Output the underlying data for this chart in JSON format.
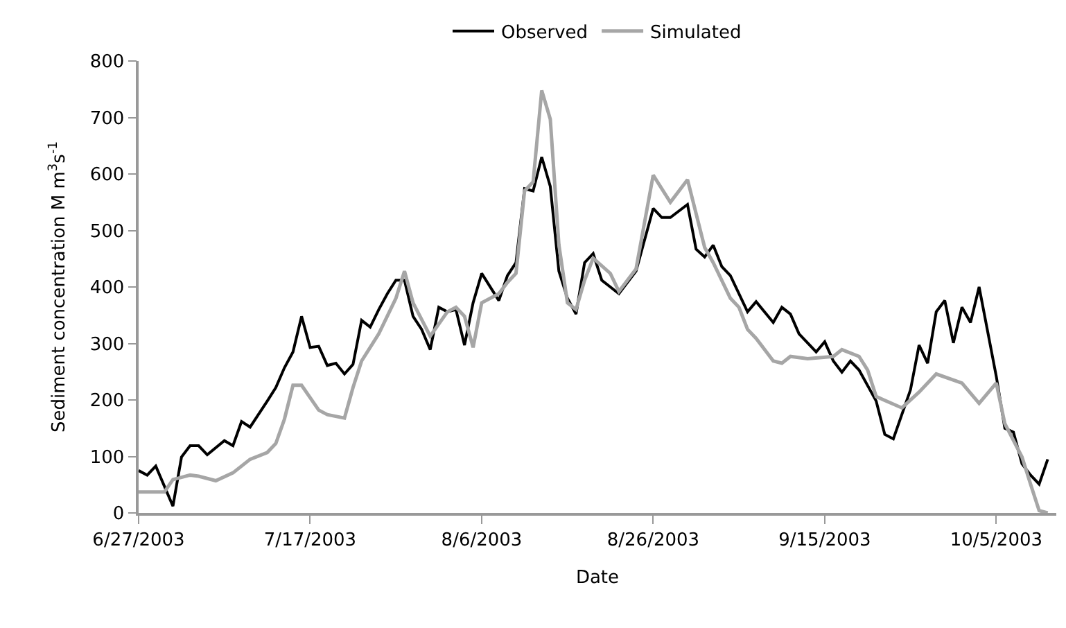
{
  "chart_data": {
    "type": "line",
    "xlabel": "Date",
    "ylabel": "Sediment concentration M m$^{3}$s$^{-1}$",
    "xlim": [
      "2003-06-27",
      "2003-10-12"
    ],
    "xticks": [
      {
        "value": "2003-06-27",
        "label": "6/27/2003"
      },
      {
        "value": "2003-07-17",
        "label": "7/17/2003"
      },
      {
        "value": "2003-08-06",
        "label": "8/6/2003"
      },
      {
        "value": "2003-08-26",
        "label": "8/26/2003"
      },
      {
        "value": "2003-09-15",
        "label": "9/15/2003"
      },
      {
        "value": "2003-10-05",
        "label": "10/5/2003"
      }
    ],
    "ylim": [
      0,
      800
    ],
    "yticks": [
      0,
      100,
      200,
      300,
      400,
      500,
      600,
      700,
      800
    ],
    "legend": "top",
    "marker": "none",
    "line_style": "solid",
    "series": [
      {
        "name": "Observed",
        "color": "#000000",
        "x": [
          "2003-06-27",
          "2003-06-28",
          "2003-06-29",
          "2003-07-01",
          "2003-07-02",
          "2003-07-03",
          "2003-07-04",
          "2003-07-05",
          "2003-07-07",
          "2003-07-08",
          "2003-07-09",
          "2003-07-10",
          "2003-07-12",
          "2003-07-13",
          "2003-07-14",
          "2003-07-15",
          "2003-07-16",
          "2003-07-17",
          "2003-07-18",
          "2003-07-19",
          "2003-07-20",
          "2003-07-21",
          "2003-07-22",
          "2003-07-23",
          "2003-07-24",
          "2003-07-25",
          "2003-07-26",
          "2003-07-27",
          "2003-07-28",
          "2003-07-29",
          "2003-07-30",
          "2003-07-31",
          "2003-08-01",
          "2003-08-02",
          "2003-08-03",
          "2003-08-04",
          "2003-08-05",
          "2003-08-06",
          "2003-08-08",
          "2003-08-09",
          "2003-08-10",
          "2003-08-11",
          "2003-08-12",
          "2003-08-13",
          "2003-08-14",
          "2003-08-15",
          "2003-08-16",
          "2003-08-17",
          "2003-08-18",
          "2003-08-19",
          "2003-08-20",
          "2003-08-21",
          "2003-08-22",
          "2003-08-24",
          "2003-08-26",
          "2003-08-27",
          "2003-08-28",
          "2003-08-30",
          "2003-08-31",
          "2003-09-01",
          "2003-09-02",
          "2003-09-03",
          "2003-09-04",
          "2003-09-06",
          "2003-09-07",
          "2003-09-09",
          "2003-09-10",
          "2003-09-11",
          "2003-09-12",
          "2003-09-14",
          "2003-09-15",
          "2003-09-16",
          "2003-09-17",
          "2003-09-18",
          "2003-09-19",
          "2003-09-21",
          "2003-09-22",
          "2003-09-23",
          "2003-09-25",
          "2003-09-26",
          "2003-09-27",
          "2003-09-28",
          "2003-09-29",
          "2003-09-30",
          "2003-10-01",
          "2003-10-02",
          "2003-10-03",
          "2003-10-05",
          "2003-10-06",
          "2003-10-07",
          "2003-10-08",
          "2003-10-09",
          "2003-10-10",
          "2003-10-11"
        ],
        "values": [
          75,
          67,
          83,
          12,
          99,
          119,
          119,
          103,
          128,
          119,
          162,
          152,
          198,
          222,
          257,
          285,
          348,
          293,
          295,
          261,
          265,
          246,
          263,
          341,
          329,
          360,
          388,
          412,
          412,
          348,
          325,
          289,
          364,
          356,
          360,
          297,
          372,
          424,
          376,
          420,
          443,
          574,
          570,
          630,
          578,
          428,
          380,
          352,
          443,
          459,
          412,
          400,
          388,
          428,
          539,
          523,
          523,
          546,
          467,
          453,
          474,
          436,
          420,
          356,
          374,
          337,
          364,
          352,
          317,
          285,
          303,
          269,
          249,
          269,
          253,
          198,
          139,
          131,
          218,
          297,
          265,
          356,
          376,
          301,
          364,
          337,
          400,
          242,
          150,
          143,
          87,
          67,
          51,
          95
        ]
      },
      {
        "name": "Simulated",
        "color": "#a6a6a6",
        "x": [
          "2003-06-27",
          "2003-06-30",
          "2003-07-01",
          "2003-07-03",
          "2003-07-04",
          "2003-07-06",
          "2003-07-08",
          "2003-07-10",
          "2003-07-12",
          "2003-07-13",
          "2003-07-14",
          "2003-07-15",
          "2003-07-16",
          "2003-07-18",
          "2003-07-19",
          "2003-07-21",
          "2003-07-22",
          "2003-07-23",
          "2003-07-25",
          "2003-07-27",
          "2003-07-28",
          "2003-07-29",
          "2003-07-31",
          "2003-08-02",
          "2003-08-03",
          "2003-08-04",
          "2003-08-05",
          "2003-08-06",
          "2003-08-08",
          "2003-08-09",
          "2003-08-10",
          "2003-08-11",
          "2003-08-12",
          "2003-08-13",
          "2003-08-14",
          "2003-08-15",
          "2003-08-16",
          "2003-08-17",
          "2003-08-18",
          "2003-08-19",
          "2003-08-21",
          "2003-08-22",
          "2003-08-24",
          "2003-08-26",
          "2003-08-28",
          "2003-08-30",
          "2003-09-01",
          "2003-09-02",
          "2003-09-04",
          "2003-09-05",
          "2003-09-06",
          "2003-09-07",
          "2003-09-09",
          "2003-09-10",
          "2003-09-11",
          "2003-09-13",
          "2003-09-16",
          "2003-09-17",
          "2003-09-19",
          "2003-09-20",
          "2003-09-21",
          "2003-09-24",
          "2003-09-26",
          "2003-09-28",
          "2003-10-01",
          "2003-10-03",
          "2003-10-05",
          "2003-10-06",
          "2003-10-08",
          "2003-10-09",
          "2003-10-10",
          "2003-10-11"
        ],
        "values": [
          37,
          37,
          59,
          67,
          65,
          57,
          71,
          95,
          107,
          123,
          166,
          226,
          226,
          182,
          174,
          168,
          222,
          269,
          317,
          380,
          428,
          372,
          313,
          356,
          364,
          348,
          293,
          372,
          388,
          408,
          424,
          570,
          586,
          748,
          697,
          475,
          372,
          360,
          412,
          451,
          424,
          392,
          432,
          598,
          550,
          590,
          470,
          443,
          380,
          364,
          325,
          309,
          269,
          265,
          277,
          273,
          277,
          289,
          277,
          253,
          206,
          186,
          214,
          246,
          230,
          194,
          230,
          158,
          99,
          51,
          4,
          0
        ]
      }
    ]
  }
}
